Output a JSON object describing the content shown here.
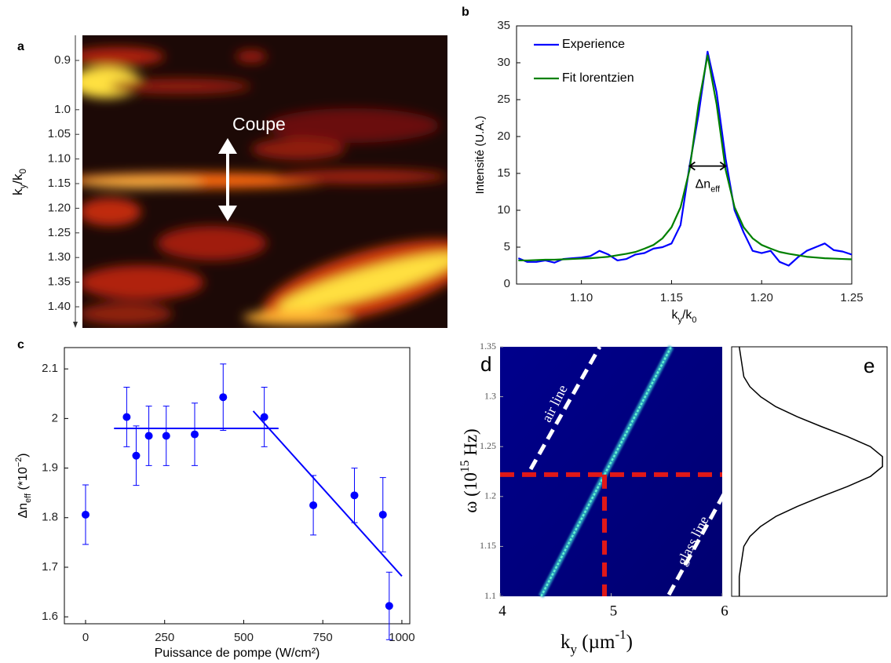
{
  "chart_data": [
    {
      "type": "image",
      "label": "a",
      "ylabel": [
        {
          "text": "k"
        },
        {
          "text": "y",
          "sub": true
        },
        {
          "text": "/k"
        },
        {
          "text": "0",
          "sub": true
        }
      ],
      "ylim": [
        0.849,
        1.443
      ],
      "invert_y": true,
      "yticks": [
        0.9,
        {
          "value": 1.0,
          "label": "1.0"
        },
        1.05,
        {
          "value": 1.1,
          "label": "1.10"
        },
        1.15,
        {
          "value": 1.2,
          "label": "1.20"
        },
        1.25,
        {
          "value": 1.3,
          "label": "1.30"
        },
        1.35,
        {
          "value": 1.4,
          "label": "1.40"
        }
      ],
      "annotation": "Coupe"
    },
    {
      "type": "line",
      "label": "b",
      "xlabel": [
        {
          "text": "k"
        },
        {
          "text": "y",
          "sub": true
        },
        {
          "text": "/k"
        },
        {
          "text": "0",
          "sub": true
        }
      ],
      "ylabel": "Intensité (U.A.)",
      "x": [
        1.065,
        1.07,
        1.075,
        1.08,
        1.085,
        1.09,
        1.095,
        1.1,
        1.105,
        1.11,
        1.115,
        1.12,
        1.125,
        1.13,
        1.135,
        1.14,
        1.145,
        1.15,
        1.155,
        1.16,
        1.165,
        1.17,
        1.175,
        1.18,
        1.185,
        1.19,
        1.195,
        1.2,
        1.205,
        1.21,
        1.215,
        1.22,
        1.225,
        1.23,
        1.235,
        1.24,
        1.245,
        1.25
      ],
      "series": [
        {
          "name": "Experience",
          "color": "#0000ff",
          "values": [
            3.5,
            3.0,
            3.0,
            3.2,
            2.9,
            3.4,
            3.5,
            3.6,
            3.8,
            4.5,
            4.0,
            3.2,
            3.4,
            4.0,
            4.2,
            4.8,
            5.0,
            5.5,
            8,
            16,
            23,
            31.5,
            26,
            17,
            10,
            7,
            4.5,
            4.2,
            4.5,
            3.0,
            2.5,
            3.6,
            4.5,
            5.0,
            5.5,
            4.6,
            4.4,
            4.0
          ]
        },
        {
          "name": "Fit lorentzien",
          "color": "#008000",
          "values": [
            3.2,
            3.2,
            3.25,
            3.3,
            3.3,
            3.35,
            3.4,
            3.45,
            3.5,
            3.6,
            3.7,
            3.9,
            4.1,
            4.35,
            4.8,
            5.3,
            6.2,
            7.7,
            10.4,
            15.5,
            24.4,
            31,
            24.4,
            15.5,
            10.4,
            7.7,
            6.2,
            5.3,
            4.8,
            4.35,
            4.1,
            3.9,
            3.7,
            3.6,
            3.5,
            3.45,
            3.4,
            3.35
          ]
        }
      ],
      "xlim": [
        1.064,
        1.25
      ],
      "ylim": [
        0,
        35
      ],
      "xticks": [
        {
          "value": 1.1,
          "label": "1.10"
        },
        1.15,
        {
          "value": 1.2,
          "label": "1.20"
        },
        1.25
      ],
      "yticks": [
        0,
        5,
        10,
        15,
        20,
        25,
        30,
        35
      ],
      "legend": "upper left",
      "annotation": {
        "text": [
          {
            "text": "Δn"
          },
          {
            "text": "eff",
            "sub": true
          }
        ],
        "x": [
          1.16,
          1.18
        ],
        "y": 16
      }
    },
    {
      "type": "scatter",
      "label": "c",
      "xlabel": "Puissance de pompe (W/cm²)",
      "ylabel": [
        {
          "text": "Δn"
        },
        {
          "text": "eff",
          "sub": true
        },
        {
          "text": " (*10"
        },
        {
          "text": "−2",
          "sup": true
        },
        {
          "text": ")"
        }
      ],
      "x": [
        0,
        130,
        160,
        200,
        255,
        345,
        435,
        565,
        720,
        850,
        940,
        960
      ],
      "values": [
        1.806,
        2.003,
        1.925,
        1.965,
        1.965,
        1.968,
        2.043,
        2.003,
        1.825,
        1.845,
        1.806,
        1.622
      ],
      "errors": [
        0.06,
        0.06,
        0.06,
        0.06,
        0.06,
        0.063,
        0.067,
        0.06,
        0.06,
        0.055,
        0.075,
        0.068
      ],
      "color": "#0000ff",
      "fits": [
        {
          "x": [
            90,
            610
          ],
          "values": [
            1.98,
            1.98
          ]
        },
        {
          "x": [
            530,
            1000
          ],
          "values": [
            2.015,
            1.682
          ]
        }
      ],
      "xlim": [
        -67,
        1025
      ],
      "ylim": [
        1.586,
        2.143
      ],
      "xticks": [
        0,
        250,
        500,
        750,
        1000
      ],
      "yticks": [
        1.6,
        1.7,
        1.8,
        1.9,
        2,
        2.1
      ]
    },
    {
      "type": "heatmap",
      "label": "d",
      "xlabel": [
        {
          "text": "k"
        },
        {
          "text": "y",
          "sub": true
        },
        {
          "text": " (µm"
        },
        {
          "text": "-1",
          "sup": true
        },
        {
          "text": ")"
        }
      ],
      "ylabel": [
        {
          "text": "ω"
        },
        {
          "text": " (10"
        },
        {
          "text": "15",
          "sup": true
        },
        {
          "text": " Hz)"
        }
      ],
      "xlim": [
        4,
        6
      ],
      "ylim": [
        1.1,
        1.35
      ],
      "xticks": [
        4,
        5,
        6
      ],
      "yticks": [
        1.1,
        1.15,
        1.2,
        1.25,
        1.3,
        1.35
      ],
      "ridge": {
        "x": [
          4.37,
          5.54
        ],
        "values": [
          1.1,
          1.35
        ]
      },
      "crosshair": {
        "x": 4.94,
        "y": 1.222
      },
      "line_labels": [
        "air line",
        "glass line"
      ]
    },
    {
      "type": "line",
      "label": "e",
      "orientation": "vertical",
      "color": "#000000",
      "y": [
        1.1,
        1.11,
        1.12,
        1.13,
        1.14,
        1.15,
        1.16,
        1.17,
        1.18,
        1.19,
        1.2,
        1.21,
        1.22,
        1.23,
        1.24,
        1.25,
        1.26,
        1.27,
        1.28,
        1.29,
        1.3,
        1.31,
        1.32,
        1.33,
        1.34,
        1.35
      ],
      "values": [
        0.05,
        0.05,
        0.05,
        0.06,
        0.07,
        0.08,
        0.12,
        0.19,
        0.29,
        0.43,
        0.59,
        0.76,
        0.91,
        0.99,
        0.99,
        0.91,
        0.76,
        0.59,
        0.43,
        0.29,
        0.19,
        0.12,
        0.08,
        0.07,
        0.06,
        0.05
      ],
      "xlim": [
        0,
        1.02
      ],
      "ylim": [
        1.1,
        1.35
      ]
    }
  ]
}
